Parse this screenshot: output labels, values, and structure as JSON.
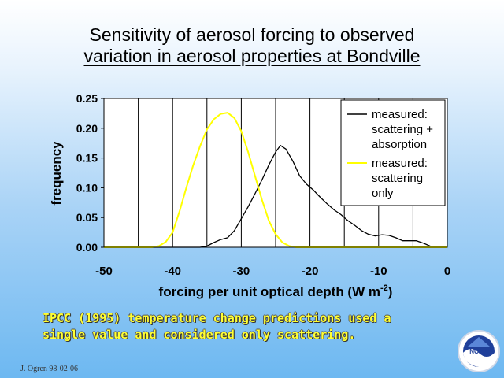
{
  "slide": {
    "title_line1": "Sensitivity of aerosol forcing to observed",
    "title_line2": "variation in aerosol properties at Bondville",
    "footnote_line1": "IPCC (1995) temperature change predictions used a",
    "footnote_line2": "single value and considered only scattering.",
    "credit": "J. Ogren 98-02-06",
    "logo_text": "NOAA",
    "colors": {
      "footnote": "#ffff33",
      "plot_bg": "#ffffff"
    }
  },
  "chart_data": {
    "type": "line",
    "title": "",
    "xlabel": "forcing per unit optical depth (W m",
    "xlabel_sup": "-2",
    "xlabel_close": ")",
    "ylabel": "frequency",
    "xlim": [
      -50,
      0
    ],
    "ylim": [
      0,
      0.25
    ],
    "x_ticks": [
      -50,
      -40,
      -30,
      -20,
      -10,
      0
    ],
    "x_tick_labels": [
      "-50",
      "-40",
      "-30",
      "-20",
      "-10",
      "0"
    ],
    "y_ticks": [
      0,
      0.05,
      0.1,
      0.15,
      0.2,
      0.25
    ],
    "y_tick_labels": [
      "0.00",
      "0.05",
      "0.10",
      "0.15",
      "0.20",
      "0.25"
    ],
    "vertical_grid": [
      -45,
      -40,
      -35,
      -30,
      -25,
      -20,
      -15,
      -10,
      -5
    ],
    "legend_position": "top-right",
    "series": [
      {
        "name_lines": [
          "measured:",
          "scattering +",
          "absorption"
        ],
        "color": "#000000",
        "points": [
          [
            -50,
            0
          ],
          [
            -40,
            0
          ],
          [
            -36,
            0
          ],
          [
            -35,
            0.002
          ],
          [
            -34,
            0.008
          ],
          [
            -33,
            0.013
          ],
          [
            -32,
            0.016
          ],
          [
            -31,
            0.028
          ],
          [
            -30,
            0.048
          ],
          [
            -29,
            0.068
          ],
          [
            -28,
            0.09
          ],
          [
            -27,
            0.113
          ],
          [
            -26,
            0.138
          ],
          [
            -25,
            0.16
          ],
          [
            -24.3,
            0.171
          ],
          [
            -23.5,
            0.165
          ],
          [
            -22.5,
            0.145
          ],
          [
            -21.5,
            0.12
          ],
          [
            -20.5,
            0.106
          ],
          [
            -19.5,
            0.096
          ],
          [
            -18.5,
            0.084
          ],
          [
            -17.5,
            0.073
          ],
          [
            -16.5,
            0.063
          ],
          [
            -15.5,
            0.055
          ],
          [
            -14.5,
            0.045
          ],
          [
            -13.5,
            0.037
          ],
          [
            -12.5,
            0.028
          ],
          [
            -11.5,
            0.022
          ],
          [
            -10.5,
            0.019
          ],
          [
            -9.5,
            0.021
          ],
          [
            -8.5,
            0.02
          ],
          [
            -7.5,
            0.016
          ],
          [
            -6.5,
            0.011
          ],
          [
            -5.5,
            0.011
          ],
          [
            -4.5,
            0.011
          ],
          [
            -3.5,
            0.007
          ],
          [
            -2.5,
            0.002
          ],
          [
            -2,
            0
          ],
          [
            0,
            0
          ]
        ]
      },
      {
        "name_lines": [
          "measured:",
          "scattering",
          "only"
        ],
        "color": "#ffff00",
        "points": [
          [
            -50,
            0
          ],
          [
            -43,
            0
          ],
          [
            -42,
            0.002
          ],
          [
            -41,
            0.009
          ],
          [
            -40,
            0.025
          ],
          [
            -39,
            0.06
          ],
          [
            -38,
            0.1
          ],
          [
            -37,
            0.138
          ],
          [
            -36,
            0.17
          ],
          [
            -35,
            0.198
          ],
          [
            -34,
            0.215
          ],
          [
            -33,
            0.224
          ],
          [
            -32,
            0.226
          ],
          [
            -31,
            0.217
          ],
          [
            -30,
            0.195
          ],
          [
            -29,
            0.16
          ],
          [
            -28,
            0.12
          ],
          [
            -27,
            0.08
          ],
          [
            -26,
            0.045
          ],
          [
            -25,
            0.022
          ],
          [
            -24,
            0.008
          ],
          [
            -23,
            0.002
          ],
          [
            -22,
            0
          ],
          [
            0,
            0
          ]
        ]
      }
    ]
  }
}
